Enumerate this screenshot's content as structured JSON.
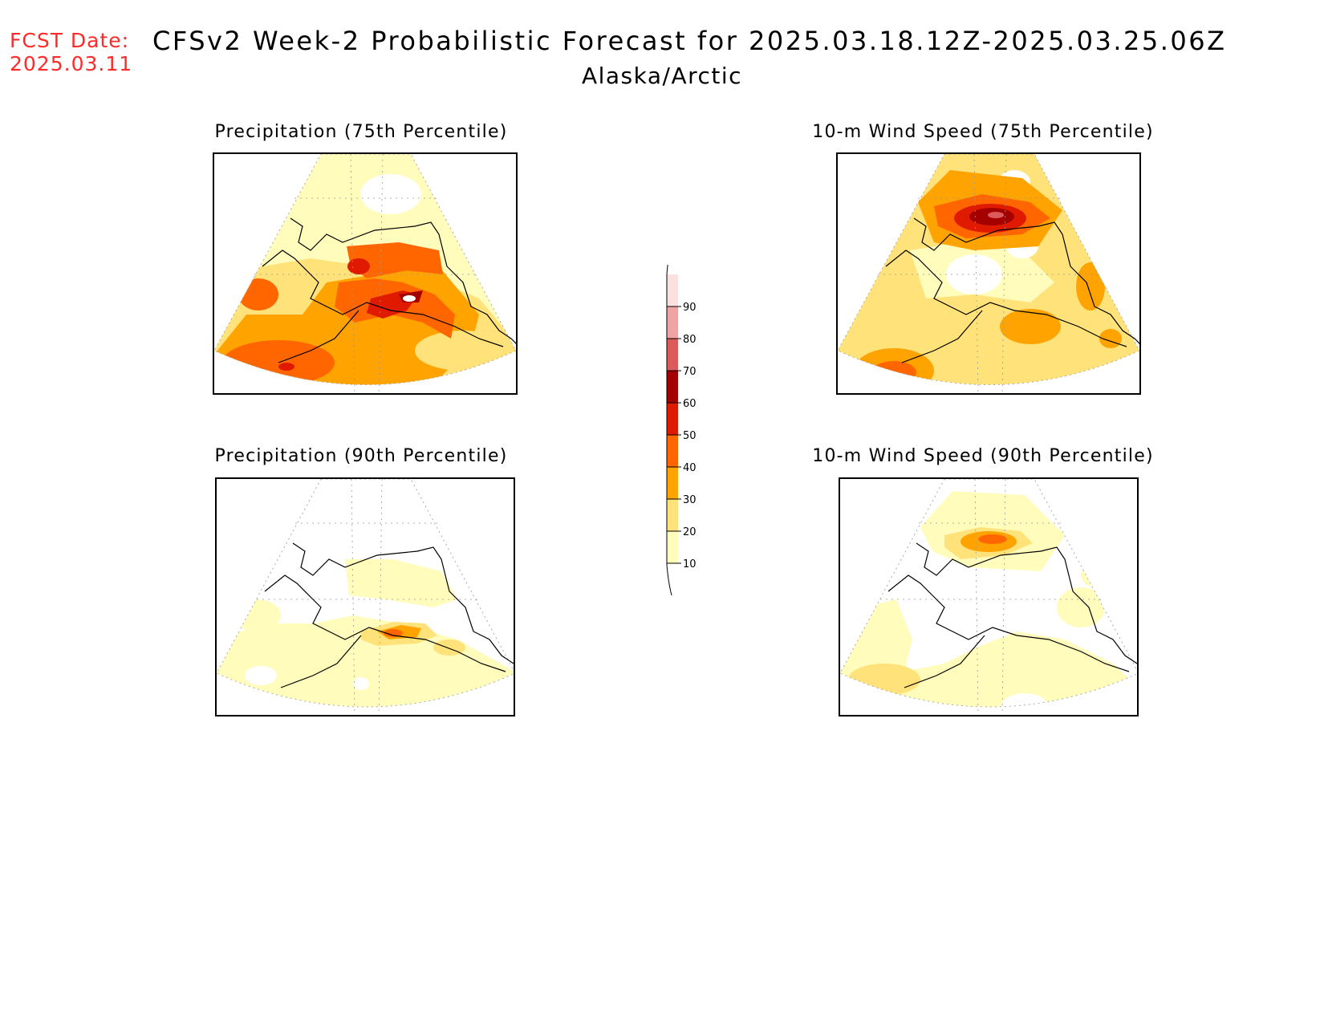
{
  "header": {
    "fcst_label": "FCST Date:",
    "fcst_date": "2025.03.11",
    "title": "CFSv2 Week-2 Probabilistic Forecast for 2025.03.18.12Z-2025.03.25.06Z",
    "region": "Alaska/Arctic"
  },
  "panels": [
    {
      "title": "Precipitation (75th Percentile)"
    },
    {
      "title": "10-m Wind Speed (75th Percentile)"
    },
    {
      "title": "Precipitation (90th Percentile)"
    },
    {
      "title": "10-m Wind Speed (90th Percentile)"
    }
  ],
  "colorbar": {
    "levels": [
      10,
      20,
      30,
      40,
      50,
      60,
      70,
      80,
      90
    ],
    "colors": [
      "#fffcbc",
      "#ffe27a",
      "#ffa300",
      "#ff6600",
      "#e01a00",
      "#a50000",
      "#dc5a5a",
      "#f0a3a3",
      "#fbe0e0"
    ]
  }
}
